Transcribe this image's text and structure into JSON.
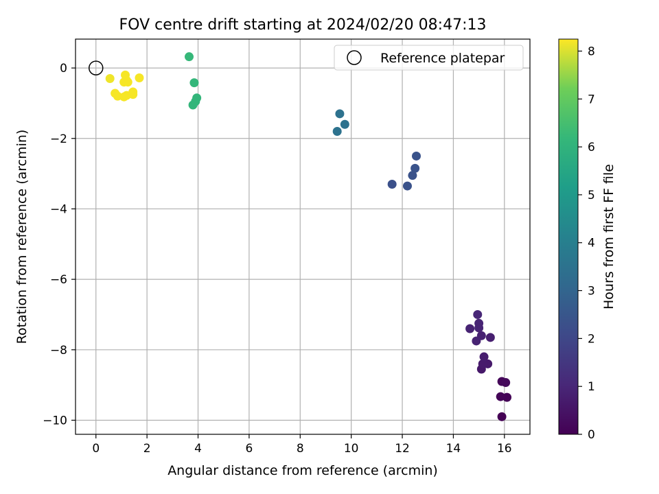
{
  "chart_data": {
    "type": "scatter",
    "title": "FOV centre drift starting at 2024/02/20 08:47:13",
    "xlabel": "Angular distance from reference (arcmin)",
    "ylabel": "Rotation from reference (arcmin)",
    "xlim": [
      -0.8,
      17.0
    ],
    "ylim": [
      -10.4,
      0.82
    ],
    "xticks": [
      0,
      2,
      4,
      6,
      8,
      10,
      12,
      14,
      16
    ],
    "yticks": [
      0,
      -2,
      -4,
      -6,
      -8,
      -10
    ],
    "grid": true,
    "legend": {
      "position": "top-right",
      "entries": [
        "Reference platepar"
      ]
    },
    "reference_point": {
      "x": 0,
      "y": 0
    },
    "colorbar": {
      "label": "Hours from first FF file",
      "min": 0,
      "max": 8.25,
      "ticks": [
        0,
        1,
        2,
        3,
        4,
        5,
        6,
        7,
        8
      ],
      "colormap": "viridis"
    },
    "points": [
      {
        "x": 15.9,
        "y": -9.9,
        "t": 0.0
      },
      {
        "x": 16.1,
        "y": -9.35,
        "t": 0.05
      },
      {
        "x": 15.85,
        "y": -9.33,
        "t": 0.1
      },
      {
        "x": 15.9,
        "y": -8.9,
        "t": 0.15
      },
      {
        "x": 16.05,
        "y": -8.93,
        "t": 0.2
      },
      {
        "x": 15.1,
        "y": -8.55,
        "t": 0.6
      },
      {
        "x": 15.35,
        "y": -8.4,
        "t": 0.65
      },
      {
        "x": 15.15,
        "y": -8.4,
        "t": 0.7
      },
      {
        "x": 15.2,
        "y": -8.2,
        "t": 0.75
      },
      {
        "x": 15.45,
        "y": -7.65,
        "t": 0.8
      },
      {
        "x": 15.1,
        "y": -7.6,
        "t": 0.85
      },
      {
        "x": 14.9,
        "y": -7.75,
        "t": 0.9
      },
      {
        "x": 14.65,
        "y": -7.4,
        "t": 0.9
      },
      {
        "x": 15.0,
        "y": -7.38,
        "t": 0.95
      },
      {
        "x": 15.0,
        "y": -7.25,
        "t": 0.95
      },
      {
        "x": 14.95,
        "y": -7.0,
        "t": 1.0
      },
      {
        "x": 11.6,
        "y": -3.3,
        "t": 2.3
      },
      {
        "x": 12.2,
        "y": -3.35,
        "t": 2.35
      },
      {
        "x": 12.4,
        "y": -3.05,
        "t": 2.35
      },
      {
        "x": 12.5,
        "y": -2.85,
        "t": 2.4
      },
      {
        "x": 12.55,
        "y": -2.5,
        "t": 2.4
      },
      {
        "x": 9.45,
        "y": -1.8,
        "t": 3.5
      },
      {
        "x": 9.75,
        "y": -1.6,
        "t": 3.5
      },
      {
        "x": 9.55,
        "y": -1.3,
        "t": 3.5
      },
      {
        "x": 3.8,
        "y": -1.05,
        "t": 6.1
      },
      {
        "x": 3.9,
        "y": -0.95,
        "t": 6.1
      },
      {
        "x": 3.95,
        "y": -0.85,
        "t": 6.1
      },
      {
        "x": 3.85,
        "y": -0.42,
        "t": 6.15
      },
      {
        "x": 3.65,
        "y": 0.32,
        "t": 6.2
      },
      {
        "x": 0.55,
        "y": -0.3,
        "t": 8.15
      },
      {
        "x": 0.75,
        "y": -0.72,
        "t": 8.2
      },
      {
        "x": 0.85,
        "y": -0.8,
        "t": 8.2
      },
      {
        "x": 1.1,
        "y": -0.82,
        "t": 8.2
      },
      {
        "x": 1.2,
        "y": -0.78,
        "t": 8.2
      },
      {
        "x": 1.45,
        "y": -0.75,
        "t": 8.2
      },
      {
        "x": 1.45,
        "y": -0.68,
        "t": 8.2
      },
      {
        "x": 1.1,
        "y": -0.4,
        "t": 8.2
      },
      {
        "x": 1.25,
        "y": -0.4,
        "t": 8.2
      },
      {
        "x": 1.2,
        "y": -0.35,
        "t": 8.2
      },
      {
        "x": 1.15,
        "y": -0.2,
        "t": 8.2
      },
      {
        "x": 1.7,
        "y": -0.28,
        "t": 8.2
      }
    ]
  }
}
